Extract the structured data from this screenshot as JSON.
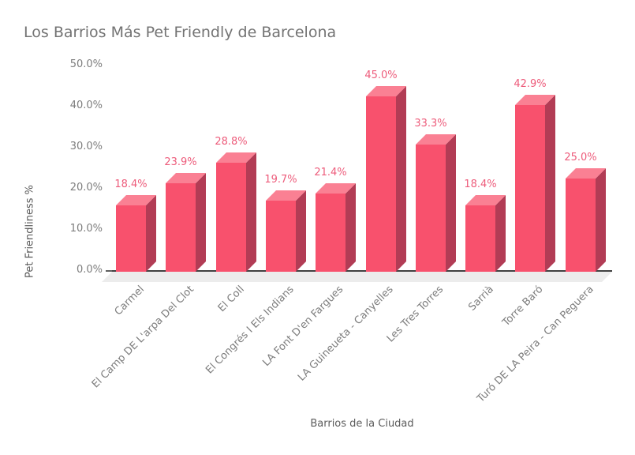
{
  "title": "Los Barrios Más Pet Friendly de Barcelona",
  "chart_data": {
    "type": "bar",
    "style": "3d-column",
    "title": "Los Barrios Más Pet Friendly de Barcelona",
    "xlabel": "Barrios de la Ciudad",
    "ylabel": "Pet Friendliness %",
    "categories": [
      "Carmel",
      "El Camp DE L'arpa Del Clot",
      "El Coll",
      "El Congrés I Els Indians",
      "LA Font D'en Fargues",
      "LA Guineueta - Canyelles",
      "Les Tres Torres",
      "Sarrià",
      "Torre Baró",
      "Turó DE LA Peira - Can Peguera"
    ],
    "values": [
      18.4,
      23.9,
      28.8,
      19.7,
      21.4,
      45.0,
      33.3,
      18.4,
      42.9,
      25.0
    ],
    "value_labels": [
      "18.4%",
      "23.9%",
      "28.8%",
      "19.7%",
      "21.4%",
      "45.0%",
      "33.3%",
      "18.4%",
      "42.9%",
      "25.0%"
    ],
    "yticks": [
      "0.0%",
      "10.0%",
      "20.0%",
      "30.0%",
      "40.0%",
      "50.0%"
    ],
    "ylim": [
      0,
      50
    ],
    "grid": false,
    "legend": "none",
    "colors": {
      "bar_front": "#F8516D",
      "bar_top": "#FA8093",
      "bar_side": "#B23C55",
      "data_label": "#ED5C7B",
      "floor": "#ECECEC",
      "axis_line": "#404040",
      "title_text": "#737373",
      "tick_text": "#7D7D7D",
      "axis_title_text": "#5B5B5B"
    }
  }
}
